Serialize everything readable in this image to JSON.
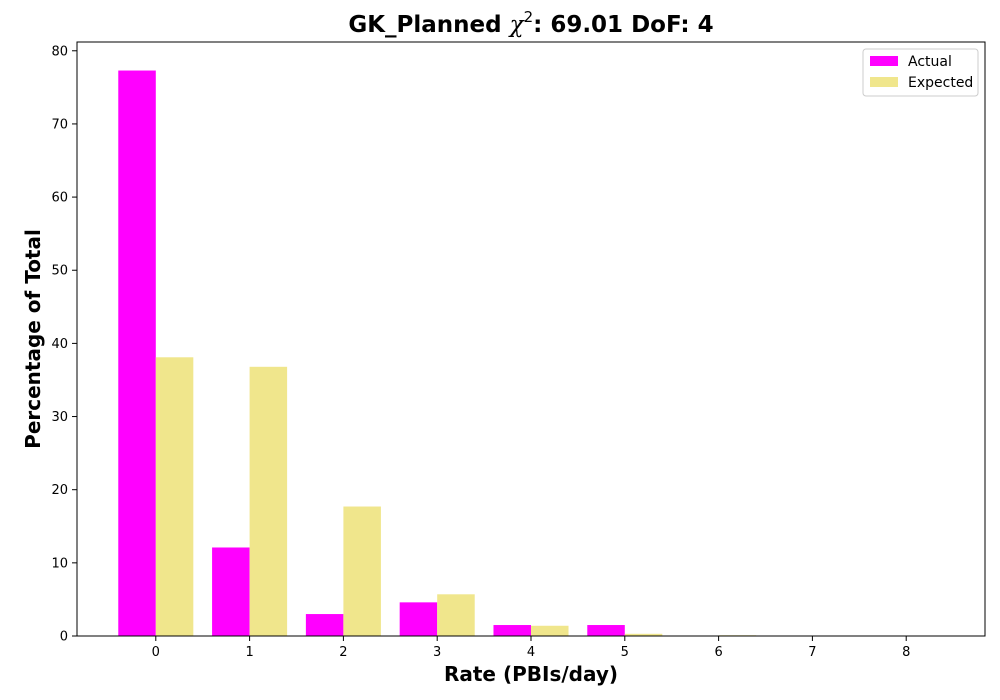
{
  "chart_data": {
    "type": "bar",
    "title_prefix": "GK_Planned ",
    "title_chi": "χ",
    "title_exp": "2",
    "title_suffix": ": 69.01 DoF: 4",
    "xlabel": "Rate (PBIs/day)",
    "ylabel": "Percentage of Total",
    "categories": [
      "0",
      "1",
      "2",
      "3",
      "4",
      "5",
      "6",
      "7",
      "8"
    ],
    "x": [
      0,
      1,
      2,
      3,
      4,
      5,
      6,
      7,
      8
    ],
    "xlim": [
      -0.84,
      8.84
    ],
    "ylim": [
      0,
      81.2
    ],
    "yticks": [
      0,
      10,
      20,
      30,
      40,
      50,
      60,
      70,
      80
    ],
    "bar_width": 0.4,
    "grid": false,
    "legend_position": "top-right",
    "series": [
      {
        "name": "Actual",
        "color": "#ff00ff",
        "offset": -0.2,
        "values": [
          77.3,
          12.1,
          3.0,
          4.6,
          1.5,
          1.5,
          0,
          0,
          0
        ]
      },
      {
        "name": "Expected",
        "color": "#f0e68c",
        "offset": 0.2,
        "values": [
          38.1,
          36.8,
          17.7,
          5.7,
          1.4,
          0.3,
          0.1,
          0,
          0
        ]
      }
    ]
  }
}
